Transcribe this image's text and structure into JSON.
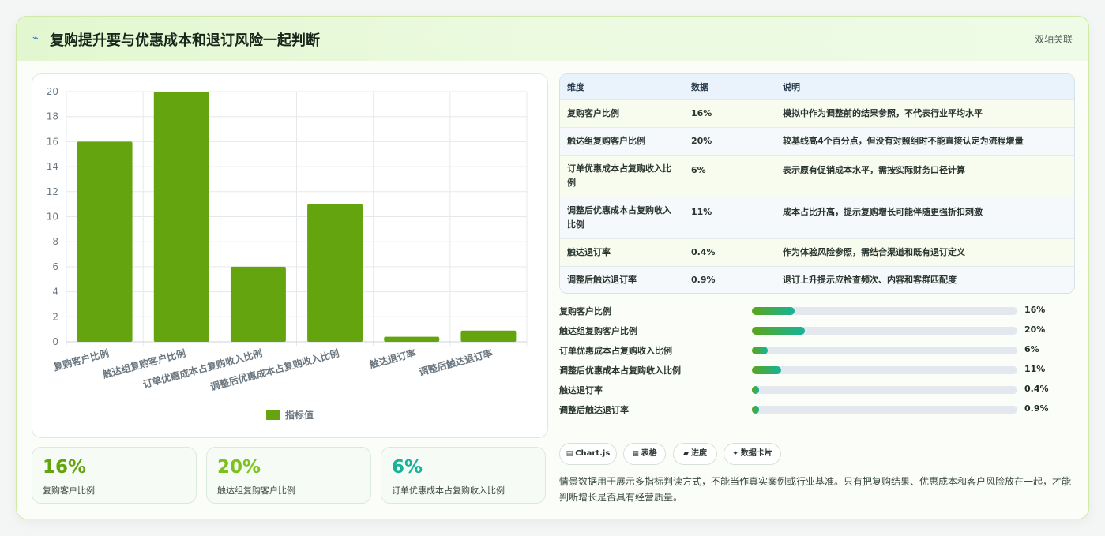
{
  "header": {
    "icon": "lightning-icon",
    "title": "复购提升要与优惠成本和退订风险一起判断",
    "link": "双轴关联"
  },
  "chart_data": {
    "type": "bar",
    "categories": [
      "复购客户比例",
      "触达组复购客户比例",
      "订单优惠成本占复购收入比例",
      "调整后优惠成本占复购收入比例",
      "触达退订率",
      "调整后触达退订率"
    ],
    "series": [
      {
        "name": "指标值",
        "values": [
          16,
          20,
          6,
          11,
          0.4,
          0.9
        ],
        "color": "#63a40f"
      }
    ],
    "ylim": [
      0,
      20
    ],
    "yticks": [
      0,
      2,
      4,
      6,
      8,
      10,
      12,
      14,
      16,
      18,
      20
    ],
    "grid": true,
    "legend": "bottom"
  },
  "kpis": [
    {
      "value": "16%",
      "label": "复购客户比例",
      "color": "#63a40f"
    },
    {
      "value": "20%",
      "label": "触达组复购客户比例",
      "color": "#7cc21e"
    },
    {
      "value": "6%",
      "label": "订单优惠成本占复购收入比例",
      "color": "#16b39a"
    }
  ],
  "table": {
    "headers": [
      "维度",
      "数据",
      "说明"
    ],
    "rows": [
      [
        "复购客户比例",
        "16%",
        "模拟中作为调整前的结果参照，不代表行业平均水平"
      ],
      [
        "触达组复购客户比例",
        "20%",
        "较基线高4个百分点，但没有对照组时不能直接认定为流程增量"
      ],
      [
        "订单优惠成本占复购收入比例",
        "6%",
        "表示原有促销成本水平，需按实际财务口径计算"
      ],
      [
        "调整后优惠成本占复购收入比例",
        "11%",
        "成本占比升高，提示复购增长可能伴随更强折扣刺激"
      ],
      [
        "触达退订率",
        "0.4%",
        "作为体验风险参照，需结合渠道和既有退订定义"
      ],
      [
        "调整后触达退订率",
        "0.9%",
        "退订上升提示应检查频次、内容和客群匹配度"
      ]
    ]
  },
  "progress": [
    {
      "label": "复购客户比例",
      "value": "16%",
      "fraction": 0.16
    },
    {
      "label": "触达组复购客户比例",
      "value": "20%",
      "fraction": 0.2
    },
    {
      "label": "订单优惠成本占复购收入比例",
      "value": "6%",
      "fraction": 0.06
    },
    {
      "label": "调整后优惠成本占复购收入比例",
      "value": "11%",
      "fraction": 0.11
    },
    {
      "label": "触达退订率",
      "value": "0.4%",
      "fraction": 0.004
    },
    {
      "label": "调整后触达退订率",
      "value": "0.9%",
      "fraction": 0.009
    }
  ],
  "chips": [
    {
      "icon": "chart-icon",
      "glyph": "▤",
      "label": "Chart.js"
    },
    {
      "icon": "table-icon",
      "glyph": "▦",
      "label": "表格"
    },
    {
      "icon": "progress-icon",
      "glyph": "▰",
      "label": "进度"
    },
    {
      "icon": "sparkle-icon",
      "glyph": "✦",
      "label": "数据卡片"
    }
  ],
  "note": "情景数据用于展示多指标判读方式，不能当作真实案例或行业基准。只有把复购结果、优惠成本和客户风险放在一起，才能判断增长是否具有经营质量。"
}
